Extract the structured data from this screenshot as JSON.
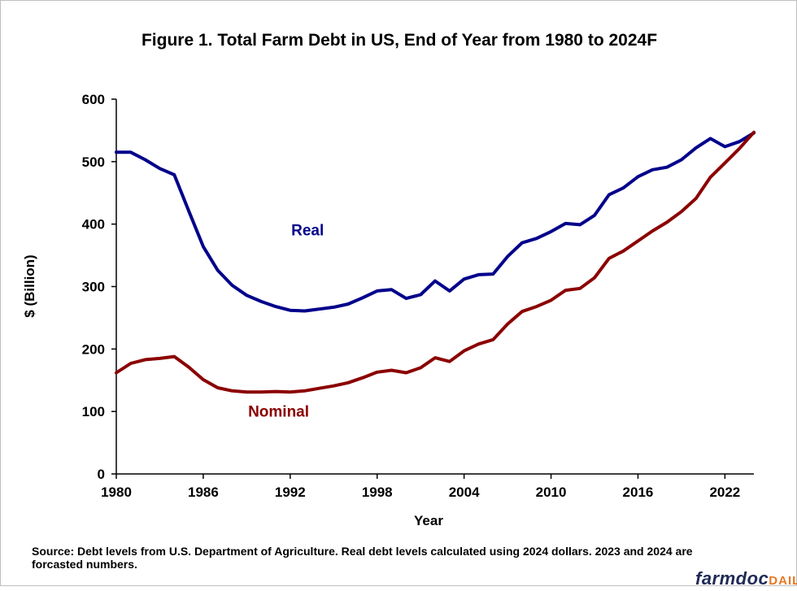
{
  "colors": {
    "real": "#00008b",
    "nominal": "#8b0000",
    "axis": "#000000",
    "brand_dark": "#1f2a56",
    "brand_accent": "#e87722"
  },
  "chart_data": {
    "type": "line",
    "title": "Figure 1. Total Farm Debt in US, End of Year from 1980 to 2024F",
    "xlabel": "Year",
    "ylabel": "$ (Billion)",
    "xlim": [
      1980,
      2024
    ],
    "ylim": [
      0,
      600
    ],
    "x_ticks": [
      "1980",
      "1986",
      "1992",
      "1998",
      "2004",
      "2010",
      "2016",
      "2022"
    ],
    "y_ticks": [
      "0",
      "100",
      "200",
      "300",
      "400",
      "500",
      "600"
    ],
    "grid": false,
    "legend": "inline labels",
    "x": [
      1980,
      1981,
      1982,
      1983,
      1984,
      1985,
      1986,
      1987,
      1988,
      1989,
      1990,
      1991,
      1992,
      1993,
      1994,
      1995,
      1996,
      1997,
      1998,
      1999,
      2000,
      2001,
      2002,
      2003,
      2004,
      2005,
      2006,
      2007,
      2008,
      2009,
      2010,
      2011,
      2012,
      2013,
      2014,
      2015,
      2016,
      2017,
      2018,
      2019,
      2020,
      2021,
      2022,
      2023,
      2024
    ],
    "series": [
      {
        "name": "Real",
        "color": "#00008b",
        "values": [
          515,
          515,
          503,
          489,
          479,
          421,
          364,
          326,
          302,
          286,
          276,
          268,
          262,
          261,
          264,
          267,
          272,
          282,
          293,
          295,
          281,
          287,
          309,
          293,
          312,
          319,
          320,
          348,
          370,
          377,
          388,
          401,
          399,
          414,
          447,
          458,
          476,
          487,
          491,
          503,
          522,
          537,
          524,
          532,
          546
        ]
      },
      {
        "name": "Nominal",
        "color": "#8b0000",
        "values": [
          162,
          177,
          183,
          185,
          188,
          171,
          151,
          138,
          133,
          131,
          131,
          132,
          131,
          133,
          137,
          141,
          146,
          154,
          163,
          166,
          162,
          170,
          186,
          180,
          197,
          208,
          215,
          240,
          260,
          268,
          278,
          294,
          297,
          314,
          345,
          357,
          373,
          389,
          403,
          420,
          441,
          475,
          498,
          521,
          547
        ]
      }
    ],
    "annotations": [
      {
        "text": "Real",
        "x": 1993.2,
        "y": 382,
        "color": "#00008b"
      },
      {
        "text": "Nominal",
        "x": 1991.2,
        "y": 92,
        "color": "#8b0000"
      }
    ]
  },
  "footer": {
    "source_line1": "Source: Debt levels from U.S. Department of Agriculture.  Real debt levels calculated using 2024 dollars. 2023 and 2024 are",
    "source_line2": "forcasted numbers.",
    "brand_main": "farmdoc",
    "brand_accent": "DAIL"
  }
}
